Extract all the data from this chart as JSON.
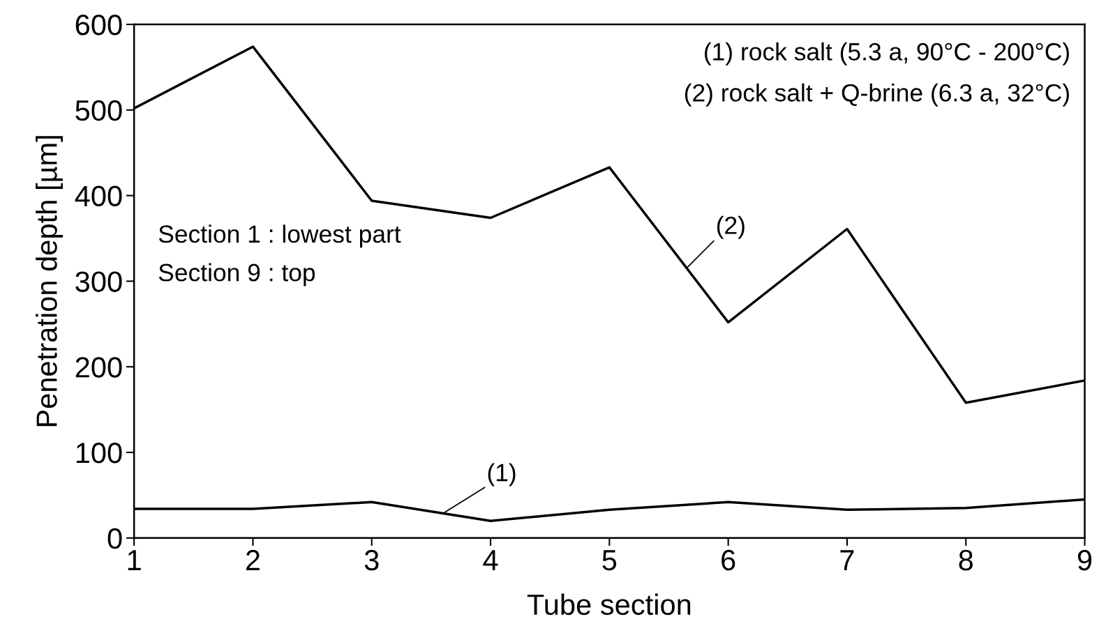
{
  "chart_data": {
    "type": "line",
    "xlabel": "Tube section",
    "ylabel": "Penetration depth [µm]",
    "x": [
      1,
      2,
      3,
      4,
      5,
      6,
      7,
      8,
      9
    ],
    "series": [
      {
        "name": "(1)",
        "color": "#000000",
        "values": [
          34,
          34,
          42,
          20,
          33,
          42,
          33,
          35,
          45
        ]
      },
      {
        "name": "(2)",
        "color": "#000000",
        "values": [
          502,
          574,
          394,
          374,
          433,
          252,
          361,
          158,
          184
        ]
      }
    ],
    "xlim": [
      1,
      9
    ],
    "xticks": [
      1,
      2,
      3,
      4,
      5,
      6,
      7,
      8,
      9
    ],
    "ylim": [
      0,
      600
    ],
    "yticks": [
      0,
      100,
      200,
      300,
      400,
      500,
      600
    ],
    "grid": false,
    "legend": false,
    "marker": "none",
    "line_style": "solid",
    "annotations": [
      "(1) rock salt (5.3 a, 90°C - 200°C)",
      "(2) rock salt + Q-brine (6.3 a, 32°C)",
      "Section 1 : lowest part",
      "Section 9 : top"
    ]
  }
}
